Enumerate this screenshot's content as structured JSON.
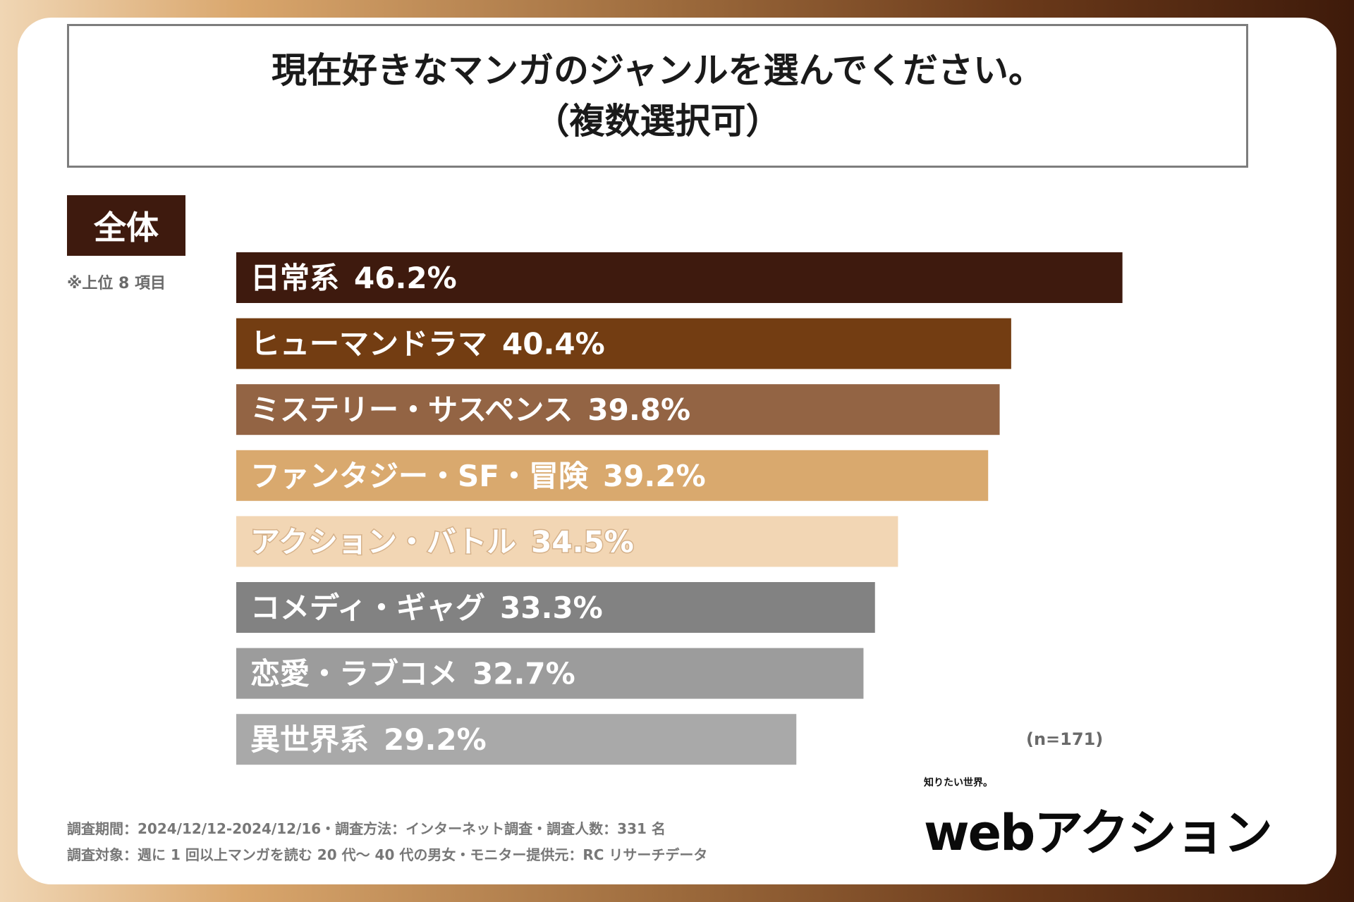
{
  "title": {
    "line1": "現在好きなマンガのジャンルを選んでください。",
    "line2": "（複数選択可）"
  },
  "segment_tag": "全体",
  "note": "※上位 8 項目",
  "sample_size": "(n=171)",
  "footer": {
    "line1": "調査期間：2024/12/12-2024/12/16・調査方法：インターネット調査・調査人数：331 名",
    "line2": "調査対象：週に 1 回以上マンガを読む 20 代〜 40 代の男女・モニター提供元：RC リサーチデータ"
  },
  "logo": {
    "tagline": "知りたい世界。",
    "wordmark": "webアクション"
  },
  "colors": {
    "bar1": "#3e1a0e",
    "bar2": "#733d12",
    "bar3": "#936444",
    "bar4": "#d9a96e",
    "bar5": "#f2d6b4",
    "bar6": "#828282",
    "bar7": "#9c9c9c",
    "bar8": "#a9a9a9"
  },
  "chart_data": {
    "type": "bar",
    "orientation": "horizontal",
    "unit": "%",
    "categories": [
      "日常系",
      "ヒューマンドラマ",
      "ミステリー・サスペンス",
      "ファンタジー・SF・冒険",
      "アクション・バトル",
      "コメディ・ギャグ",
      "恋愛・ラブコメ",
      "異世界系"
    ],
    "values": [
      46.2,
      40.4,
      39.8,
      39.2,
      34.5,
      33.3,
      32.7,
      29.2
    ],
    "value_labels": [
      "46.2%",
      "40.4%",
      "39.8%",
      "39.2%",
      "34.5%",
      "33.3%",
      "32.7%",
      "29.2%"
    ],
    "title": "現在好きなマンガのジャンルを選んでください。（複数選択可）",
    "xlabel": "",
    "ylabel": ""
  }
}
